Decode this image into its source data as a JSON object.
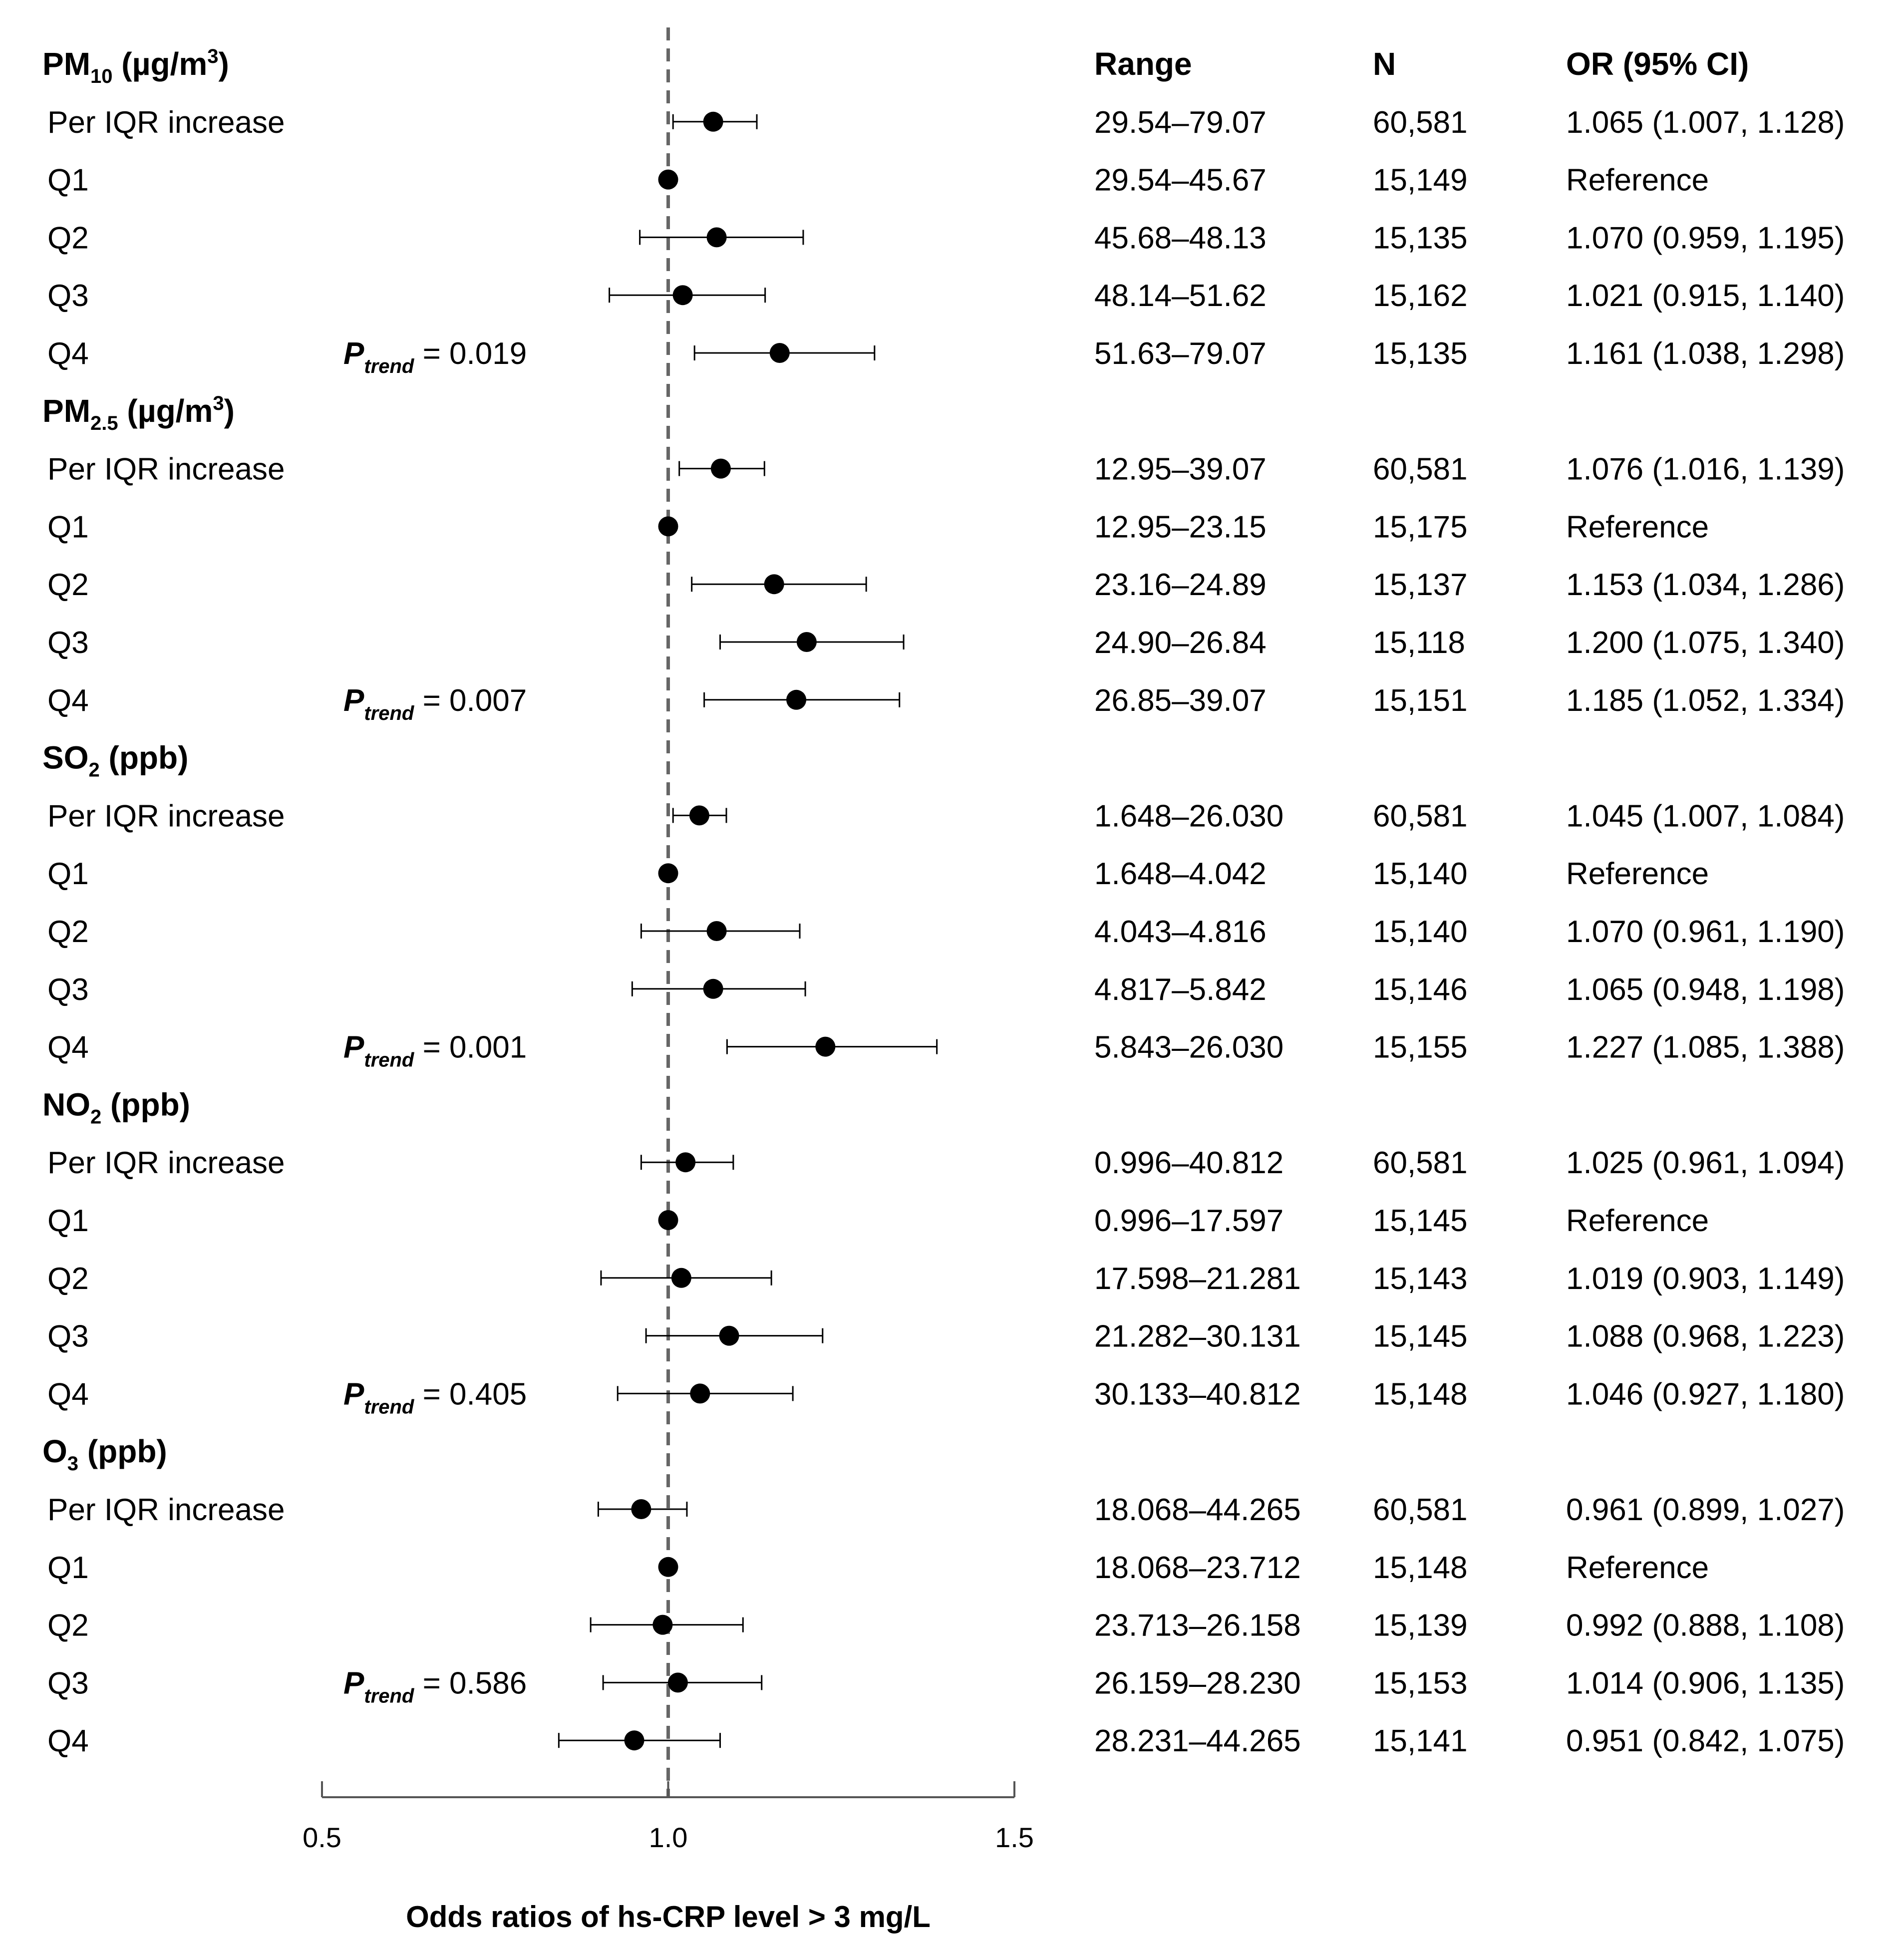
{
  "chart_data": {
    "type": "forest",
    "xlabel": "Odds ratios of hs-CRP level > 3 mg/L",
    "xlim": [
      0.5,
      1.5
    ],
    "ticks": [
      0.5,
      1.0,
      1.5
    ],
    "tick_labels": [
      "0.5",
      "1.0",
      "1.5"
    ],
    "reference_line": 1.0,
    "columns": {
      "range": "Range",
      "n": "N",
      "or": "OR  (95% CI)"
    },
    "groups": [
      {
        "title": "PM",
        "title_sub": "10",
        "title_unit": " (µg/m",
        "title_sup": "3",
        "title_close": ")",
        "p_trend_label": "P",
        "p_trend_sub": "trend",
        "p_trend_value": " = 0.019",
        "p_trend_row": 4,
        "rows": [
          {
            "label": "Per IQR increase",
            "range": "29.54–79.07",
            "n": "60,581",
            "or_text": "1.065 (1.007, 1.128)",
            "or": 1.065,
            "lo": 1.007,
            "hi": 1.128
          },
          {
            "label": "Q1",
            "range": "29.54–45.67",
            "n": "15,149",
            "or_text": "Reference",
            "or": 1.0,
            "lo": null,
            "hi": null
          },
          {
            "label": "Q2",
            "range": "45.68–48.13",
            "n": "15,135",
            "or_text": "1.070 (0.959, 1.195)",
            "or": 1.07,
            "lo": 0.959,
            "hi": 1.195
          },
          {
            "label": "Q3",
            "range": "48.14–51.62",
            "n": "15,162",
            "or_text": "1.021 (0.915, 1.140)",
            "or": 1.021,
            "lo": 0.915,
            "hi": 1.14
          },
          {
            "label": "Q4",
            "range": "51.63–79.07",
            "n": "15,135",
            "or_text": "1.161 (1.038, 1.298)",
            "or": 1.161,
            "lo": 1.038,
            "hi": 1.298
          }
        ]
      },
      {
        "title": "PM",
        "title_sub": "2.5",
        "title_unit": " (µg/m",
        "title_sup": "3",
        "title_close": ")",
        "p_trend_label": "P",
        "p_trend_sub": "trend",
        "p_trend_value": " = 0.007",
        "p_trend_row": 4,
        "rows": [
          {
            "label": "Per IQR increase",
            "range": "12.95–39.07",
            "n": "60,581",
            "or_text": "1.076 (1.016, 1.139)",
            "or": 1.076,
            "lo": 1.016,
            "hi": 1.139
          },
          {
            "label": "Q1",
            "range": "12.95–23.15",
            "n": "15,175",
            "or_text": "Reference",
            "or": 1.0,
            "lo": null,
            "hi": null
          },
          {
            "label": "Q2",
            "range": "23.16–24.89",
            "n": "15,137",
            "or_text": "1.153 (1.034, 1.286)",
            "or": 1.153,
            "lo": 1.034,
            "hi": 1.286
          },
          {
            "label": "Q3",
            "range": "24.90–26.84",
            "n": "15,118",
            "or_text": "1.200 (1.075, 1.340)",
            "or": 1.2,
            "lo": 1.075,
            "hi": 1.34
          },
          {
            "label": "Q4",
            "range": "26.85–39.07",
            "n": "15,151",
            "or_text": "1.185 (1.052, 1.334)",
            "or": 1.185,
            "lo": 1.052,
            "hi": 1.334
          }
        ]
      },
      {
        "title": "SO",
        "title_sub": "2",
        "title_unit": " (ppb)",
        "title_sup": "",
        "title_close": "",
        "p_trend_label": "P",
        "p_trend_sub": "trend",
        "p_trend_value": " = 0.001",
        "p_trend_row": 4,
        "rows": [
          {
            "label": "Per IQR increase",
            "range": "1.648–26.030",
            "n": "60,581",
            "or_text": "1.045 (1.007, 1.084)",
            "or": 1.045,
            "lo": 1.007,
            "hi": 1.084
          },
          {
            "label": "Q1",
            "range": "1.648–4.042",
            "n": "15,140",
            "or_text": "Reference",
            "or": 1.0,
            "lo": null,
            "hi": null
          },
          {
            "label": "Q2",
            "range": "4.043–4.816",
            "n": "15,140",
            "or_text": "1.070 (0.961, 1.190)",
            "or": 1.07,
            "lo": 0.961,
            "hi": 1.19
          },
          {
            "label": "Q3",
            "range": "4.817–5.842",
            "n": "15,146",
            "or_text": "1.065 (0.948, 1.198)",
            "or": 1.065,
            "lo": 0.948,
            "hi": 1.198
          },
          {
            "label": "Q4",
            "range": "5.843–26.030",
            "n": "15,155",
            "or_text": "1.227 (1.085, 1.388)",
            "or": 1.227,
            "lo": 1.085,
            "hi": 1.388
          }
        ]
      },
      {
        "title": "NO",
        "title_sub": "2",
        "title_unit": " (ppb)",
        "title_sup": "",
        "title_close": "",
        "p_trend_label": "P",
        "p_trend_sub": "trend",
        "p_trend_value": " = 0.405",
        "p_trend_row": 4,
        "rows": [
          {
            "label": "Per IQR increase",
            "range": "0.996–40.812",
            "n": "60,581",
            "or_text": "1.025 (0.961, 1.094)",
            "or": 1.025,
            "lo": 0.961,
            "hi": 1.094
          },
          {
            "label": "Q1",
            "range": "0.996–17.597",
            "n": "15,145",
            "or_text": "Reference",
            "or": 1.0,
            "lo": null,
            "hi": null
          },
          {
            "label": "Q2",
            "range": "17.598–21.281",
            "n": "15,143",
            "or_text": "1.019 (0.903, 1.149)",
            "or": 1.019,
            "lo": 0.903,
            "hi": 1.149
          },
          {
            "label": "Q3",
            "range": "21.282–30.131",
            "n": "15,145",
            "or_text": "1.088 (0.968, 1.223)",
            "or": 1.088,
            "lo": 0.968,
            "hi": 1.223
          },
          {
            "label": "Q4",
            "range": "30.133–40.812",
            "n": "15,148",
            "or_text": "1.046 (0.927, 1.180)",
            "or": 1.046,
            "lo": 0.927,
            "hi": 1.18
          }
        ]
      },
      {
        "title": "O",
        "title_sub": "3",
        "title_unit": " (ppb)",
        "title_sup": "",
        "title_close": "",
        "p_trend_label": "P",
        "p_trend_sub": "trend",
        "p_trend_value": " = 0.586",
        "p_trend_row": 3,
        "rows": [
          {
            "label": "Per IQR increase",
            "range": "18.068–44.265",
            "n": "60,581",
            "or_text": "0.961 (0.899, 1.027)",
            "or": 0.961,
            "lo": 0.899,
            "hi": 1.027
          },
          {
            "label": "Q1",
            "range": "18.068–23.712",
            "n": "15,148",
            "or_text": "Reference",
            "or": 1.0,
            "lo": null,
            "hi": null
          },
          {
            "label": "Q2",
            "range": "23.713–26.158",
            "n": "15,139",
            "or_text": "0.992 (0.888, 1.108)",
            "or": 0.992,
            "lo": 0.888,
            "hi": 1.108
          },
          {
            "label": "Q3",
            "range": "26.159–28.230",
            "n": "15,153",
            "or_text": "1.014 (0.906, 1.135)",
            "or": 1.014,
            "lo": 0.906,
            "hi": 1.135
          },
          {
            "label": "Q4",
            "range": "28.231–44.265",
            "n": "15,141",
            "or_text": "0.951 (0.842, 1.075)",
            "or": 0.951,
            "lo": 0.842,
            "hi": 1.075
          }
        ]
      }
    ]
  }
}
